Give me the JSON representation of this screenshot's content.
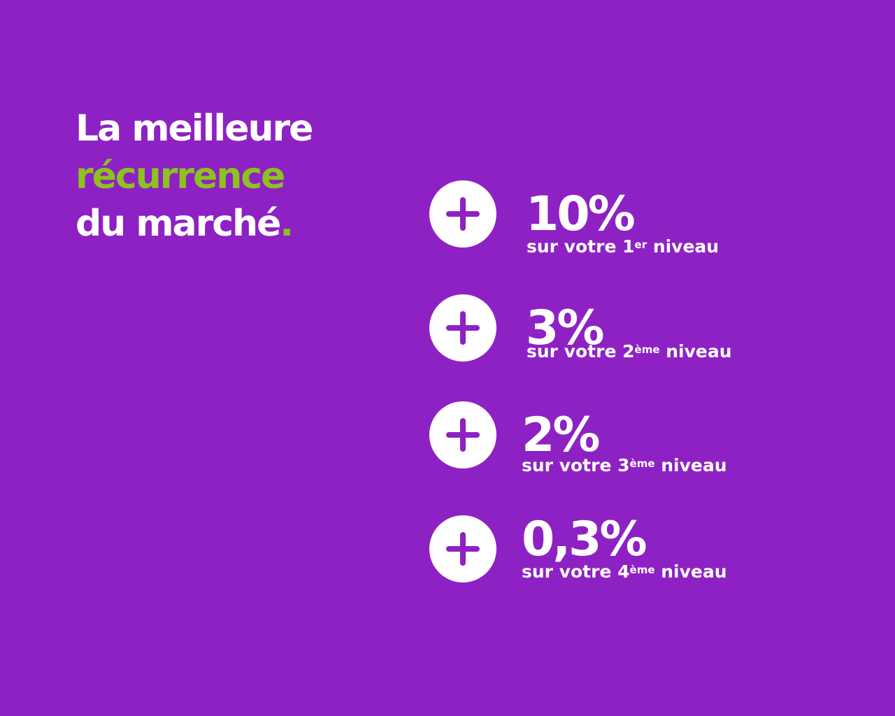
{
  "colors": {
    "background": "#8e21c4",
    "text": "#ffffff",
    "accent": "#8dc21f",
    "plus_icon": "#8e21c4"
  },
  "headline": {
    "line1": "La meilleure",
    "line2": "récurrence",
    "line3": "du marché",
    "dot": "."
  },
  "rates": [
    {
      "icon": "plus-icon",
      "value": "10%",
      "desc_prefix": "sur votre 1",
      "desc_sup": "er",
      "desc_suffix": " niveau"
    },
    {
      "icon": "plus-icon",
      "value": "3%",
      "desc_prefix": "sur votre 2",
      "desc_sup": "ème",
      "desc_suffix": " niveau"
    },
    {
      "icon": "plus-icon",
      "value": "2%",
      "desc_prefix": "sur votre 3",
      "desc_sup": "ème",
      "desc_suffix": " niveau"
    },
    {
      "icon": "plus-icon",
      "value": "0,3%",
      "desc_prefix": "sur votre 4",
      "desc_sup": "ème",
      "desc_suffix": " niveau"
    }
  ]
}
